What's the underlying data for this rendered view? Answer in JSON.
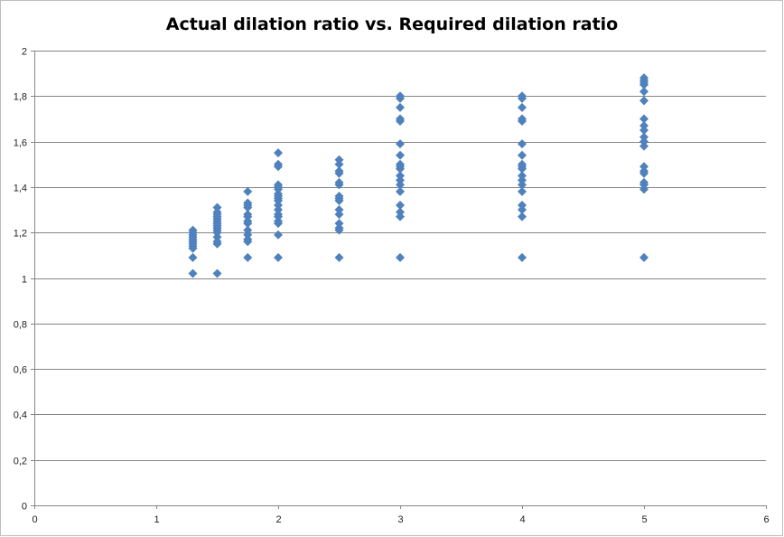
{
  "chart_data": {
    "type": "scatter",
    "title": "Actual dilation ratio vs. Required dilation ratio",
    "xlabel": "",
    "ylabel": "",
    "xlim": [
      0,
      6
    ],
    "ylim": [
      0,
      2
    ],
    "x_ticks": [
      "0",
      "1",
      "2",
      "3",
      "4",
      "5",
      "6"
    ],
    "y_ticks": [
      "0",
      "0,2",
      "0,4",
      "0,6",
      "0,8",
      "1",
      "1,2",
      "1,4",
      "1,6",
      "1,8",
      "2"
    ],
    "grid": "horizontal",
    "legend": "none",
    "marker": "diamond",
    "color": "#4f81bd",
    "series": [
      {
        "x": [
          1.3,
          1.3,
          1.3,
          1.3,
          1.3,
          1.3,
          1.3,
          1.3,
          1.3,
          1.3,
          1.3,
          1.3,
          1.5,
          1.5,
          1.5,
          1.5,
          1.5,
          1.5,
          1.5,
          1.5,
          1.5,
          1.5,
          1.5,
          1.5,
          1.5,
          1.5,
          1.5,
          1.5,
          1.75,
          1.75,
          1.75,
          1.75,
          1.75,
          1.75,
          1.75,
          1.75,
          1.75,
          1.75,
          1.75,
          1.75,
          1.75,
          2,
          2,
          2,
          2,
          2,
          2,
          2,
          2,
          2,
          2,
          2,
          2,
          2,
          2,
          2,
          2,
          2,
          2,
          2.5,
          2.5,
          2.5,
          2.5,
          2.5,
          2.5,
          2.5,
          2.5,
          2.5,
          2.5,
          2.5,
          2.5,
          2.5,
          2.5,
          2.5,
          3,
          3,
          3,
          3,
          3,
          3,
          3,
          3,
          3,
          3,
          3,
          3,
          3,
          3,
          3,
          3,
          3,
          3,
          4,
          4,
          4,
          4,
          4,
          4,
          4,
          4,
          4,
          4,
          4,
          4,
          4,
          4,
          4,
          4,
          4,
          4,
          5,
          5,
          5,
          5,
          5,
          5,
          5,
          5,
          5,
          5,
          5,
          5,
          5,
          5,
          5,
          5,
          5,
          5,
          5
        ],
        "y": [
          1.02,
          1.09,
          1.13,
          1.14,
          1.15,
          1.16,
          1.17,
          1.18,
          1.19,
          1.2,
          1.21,
          1.16,
          1.02,
          1.15,
          1.16,
          1.18,
          1.2,
          1.21,
          1.22,
          1.23,
          1.24,
          1.25,
          1.26,
          1.27,
          1.28,
          1.29,
          1.31,
          1.23,
          1.09,
          1.16,
          1.17,
          1.19,
          1.21,
          1.24,
          1.25,
          1.27,
          1.28,
          1.31,
          1.32,
          1.33,
          1.38,
          1.09,
          1.19,
          1.24,
          1.25,
          1.27,
          1.28,
          1.3,
          1.32,
          1.34,
          1.35,
          1.36,
          1.37,
          1.39,
          1.4,
          1.41,
          1.49,
          1.5,
          1.55,
          1.09,
          1.21,
          1.22,
          1.24,
          1.28,
          1.3,
          1.34,
          1.35,
          1.36,
          1.41,
          1.42,
          1.46,
          1.47,
          1.5,
          1.52,
          1.09,
          1.27,
          1.29,
          1.32,
          1.38,
          1.41,
          1.43,
          1.45,
          1.48,
          1.49,
          1.5,
          1.54,
          1.59,
          1.69,
          1.7,
          1.75,
          1.79,
          1.8,
          1.09,
          1.27,
          1.3,
          1.32,
          1.38,
          1.41,
          1.43,
          1.45,
          1.48,
          1.49,
          1.5,
          1.54,
          1.59,
          1.69,
          1.7,
          1.75,
          1.79,
          1.8,
          1.09,
          1.39,
          1.41,
          1.42,
          1.46,
          1.47,
          1.49,
          1.58,
          1.6,
          1.62,
          1.65,
          1.67,
          1.7,
          1.78,
          1.82,
          1.85,
          1.86,
          1.87,
          1.88
        ]
      }
    ]
  }
}
